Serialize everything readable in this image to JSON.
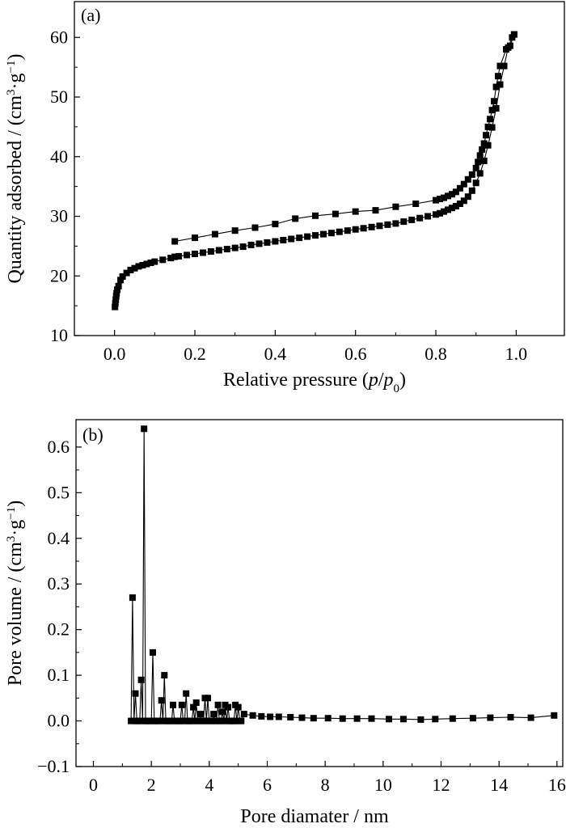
{
  "chart_data": [
    {
      "type": "scatter",
      "panel_label": "(a)",
      "xlabel_parts": [
        "Relative pressure (",
        "p",
        "/",
        "p",
        "0",
        ")"
      ],
      "ylabel_parts": [
        "Quantity adsorbed / (cm",
        "3",
        "·g",
        "−1",
        ")"
      ],
      "xlim": [
        -0.1,
        1.12
      ],
      "ylim": [
        10,
        66
      ],
      "xticks": [
        0.0,
        0.2,
        0.4,
        0.6,
        0.8,
        1.0
      ],
      "xtick_labels": [
        "0.0",
        "0.2",
        "0.4",
        "0.6",
        "0.8",
        "1.0"
      ],
      "yticks": [
        10,
        20,
        30,
        40,
        50,
        60
      ],
      "ytick_labels": [
        "10",
        "20",
        "30",
        "40",
        "50",
        "60"
      ],
      "marker": "square",
      "connected": true,
      "series": [
        {
          "x": [
            0.001,
            0.002,
            0.003,
            0.004,
            0.005,
            0.007,
            0.01,
            0.015,
            0.02,
            0.03,
            0.04,
            0.05,
            0.06,
            0.07,
            0.08,
            0.09,
            0.1,
            0.12,
            0.14,
            0.15,
            0.16,
            0.18,
            0.2,
            0.22,
            0.24,
            0.26,
            0.28,
            0.3,
            0.32,
            0.34,
            0.36,
            0.38,
            0.4,
            0.42,
            0.44,
            0.46,
            0.48,
            0.5,
            0.52,
            0.54,
            0.56,
            0.58,
            0.6,
            0.62,
            0.64,
            0.66,
            0.68,
            0.7,
            0.72,
            0.74,
            0.76,
            0.78,
            0.8,
            0.81,
            0.82,
            0.83,
            0.84,
            0.85,
            0.86,
            0.87,
            0.88,
            0.89,
            0.9,
            0.91,
            0.92,
            0.93,
            0.94,
            0.95,
            0.96,
            0.97,
            0.98,
            0.99,
            0.995
          ],
          "y": [
            14.8,
            15.4,
            16.0,
            16.6,
            17.1,
            17.7,
            18.3,
            19.3,
            19.9,
            20.5,
            21.0,
            21.3,
            21.6,
            21.8,
            22.0,
            22.2,
            22.4,
            22.7,
            23.0,
            23.2,
            23.3,
            23.5,
            23.7,
            23.9,
            24.1,
            24.3,
            24.5,
            24.7,
            24.9,
            25.2,
            25.4,
            25.6,
            25.8,
            26.0,
            26.2,
            26.4,
            26.6,
            26.8,
            27.0,
            27.2,
            27.4,
            27.6,
            27.8,
            28.0,
            28.2,
            28.4,
            28.6,
            28.8,
            29.1,
            29.4,
            29.7,
            30.0,
            30.3,
            30.5,
            30.8,
            31.1,
            31.4,
            31.7,
            32.1,
            32.6,
            33.3,
            34.3,
            35.6,
            37.2,
            39.3,
            41.9,
            44.9,
            48.1,
            52.1,
            55.2,
            58.3,
            60.0,
            60.5
          ]
        },
        {
          "x": [
            0.995,
            0.985,
            0.975,
            0.96,
            0.955,
            0.95,
            0.945,
            0.94,
            0.935,
            0.93,
            0.925,
            0.92,
            0.915,
            0.91,
            0.905,
            0.9,
            0.89,
            0.88,
            0.87,
            0.86,
            0.85,
            0.84,
            0.83,
            0.82,
            0.81,
            0.8,
            0.75,
            0.7,
            0.65,
            0.6,
            0.55,
            0.5,
            0.45,
            0.4,
            0.35,
            0.3,
            0.25,
            0.2,
            0.15
          ],
          "y": [
            60.5,
            58.6,
            58.0,
            55.2,
            53.5,
            51.7,
            49.3,
            47.8,
            46.3,
            45.0,
            43.6,
            42.2,
            41.2,
            40.2,
            39.1,
            38.1,
            37.0,
            36.2,
            35.4,
            34.7,
            34.1,
            33.7,
            33.4,
            33.1,
            32.9,
            32.7,
            32.1,
            31.6,
            31.0,
            30.8,
            30.4,
            30.1,
            29.6,
            28.7,
            28.1,
            27.6,
            27.0,
            26.4,
            25.8
          ]
        }
      ]
    },
    {
      "type": "scatter",
      "panel_label": "(b)",
      "xlabel_parts": [
        "Pore diamater / nm"
      ],
      "ylabel_parts": [
        "Pore volume / (cm",
        "3",
        "·g",
        "−1",
        ")"
      ],
      "xlim": [
        -0.6,
        16.2
      ],
      "ylim": [
        -0.1,
        0.66
      ],
      "xticks": [
        0,
        2,
        4,
        6,
        8,
        10,
        12,
        14,
        16
      ],
      "xtick_labels": [
        "0",
        "2",
        "4",
        "6",
        "8",
        "10",
        "12",
        "14",
        "16"
      ],
      "yticks": [
        -0.1,
        0.0,
        0.1,
        0.2,
        0.3,
        0.4,
        0.5,
        0.6
      ],
      "ytick_labels": [
        "−0.1",
        "0.0",
        "0.1",
        "0.2",
        "0.3",
        "0.4",
        "0.5",
        "0.6"
      ],
      "marker": "square",
      "connected": true,
      "series": [
        {
          "x": [
            1.3,
            1.35,
            1.4,
            1.45,
            1.5,
            1.55,
            1.6,
            1.65,
            1.7,
            1.75,
            1.8,
            1.85,
            1.9,
            1.95,
            2.0,
            2.05,
            2.1,
            2.15,
            2.2,
            2.25,
            2.3,
            2.35,
            2.4,
            2.45,
            2.5,
            2.55,
            2.6,
            2.65,
            2.7,
            2.75,
            2.8,
            2.85,
            2.9,
            2.95,
            3.0,
            3.05,
            3.1,
            3.15,
            3.2,
            3.25,
            3.3,
            3.35,
            3.4,
            3.45,
            3.5,
            3.55,
            3.6,
            3.65,
            3.7,
            3.75,
            3.8,
            3.85,
            3.9,
            3.95,
            4.0,
            4.05,
            4.1,
            4.15,
            4.2,
            4.25,
            4.3,
            4.35,
            4.4,
            4.45,
            4.5,
            4.55,
            4.6,
            4.65,
            4.7,
            4.75,
            4.8,
            4.85,
            4.9,
            4.95,
            5.0,
            5.05,
            5.1,
            5.2,
            5.5,
            5.8,
            6.1,
            6.4,
            6.8,
            7.2,
            7.6,
            8.1,
            8.6,
            9.1,
            9.6,
            10.2,
            10.7,
            11.3,
            11.8,
            12.4,
            13.1,
            13.7,
            14.4,
            15.1,
            15.9
          ],
          "y": [
            0.0,
            0.27,
            0.0,
            0.06,
            0.0,
            0.0,
            0.0,
            0.09,
            0.0,
            0.64,
            0.0,
            0.0,
            0.0,
            0.0,
            0.0,
            0.15,
            0.0,
            0.0,
            0.0,
            0.0,
            0.0,
            0.045,
            0.0,
            0.1,
            0.0,
            0.0,
            0.0,
            0.0,
            0.0,
            0.035,
            0.0,
            0.0,
            0.0,
            0.0,
            0.0,
            0.035,
            0.0,
            0.0,
            0.06,
            0.0,
            0.0,
            0.0,
            0.0,
            0.03,
            0.0,
            0.04,
            0.0,
            0.0,
            0.015,
            0.0,
            0.0,
            0.05,
            0.0,
            0.05,
            0.0,
            0.0,
            0.0,
            0.015,
            0.0,
            0.0,
            0.035,
            0.0,
            0.0,
            0.02,
            0.0,
            0.035,
            0.0,
            0.03,
            0.0,
            0.0,
            0.0,
            0.0,
            0.035,
            0.0,
            0.03,
            0.0,
            0.0,
            0.015,
            0.012,
            0.01,
            0.009,
            0.009,
            0.008,
            0.007,
            0.006,
            0.006,
            0.005,
            0.005,
            0.005,
            0.004,
            0.004,
            0.003,
            0.004,
            0.005,
            0.006,
            0.007,
            0.008,
            0.007,
            0.012
          ]
        }
      ]
    }
  ]
}
